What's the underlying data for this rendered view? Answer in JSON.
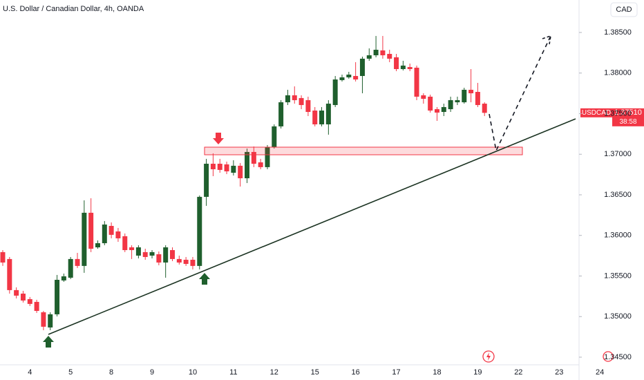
{
  "chart_data": {
    "type": "candlestick",
    "title": "U.S. Dollar / Canadian Dollar, 4h, OANDA",
    "currency_button": "CAD",
    "symbol_tag": "USDCAD",
    "last_price": {
      "value": 1.3751,
      "label": "1.37510"
    },
    "countdown": "38:58",
    "up_color": "#1f5f2d",
    "down_color": "#f23645",
    "grid": false,
    "categories": [
      null,
      null,
      null,
      null,
      "4",
      null,
      null,
      null,
      null,
      null,
      "5",
      null,
      null,
      null,
      null,
      null,
      "8",
      null,
      null,
      null,
      null,
      null,
      "9",
      null,
      null,
      null,
      null,
      null,
      "10",
      null,
      null,
      null,
      null,
      null,
      "11",
      null,
      null,
      null,
      null,
      null,
      "12",
      null,
      null,
      null,
      null,
      null,
      "15",
      null,
      null,
      null,
      null,
      null,
      "16",
      null,
      null,
      null,
      null,
      null,
      "17",
      null,
      null,
      null,
      null,
      null,
      "18",
      null,
      null,
      null,
      null,
      null,
      "19",
      null,
      null,
      null,
      null,
      null,
      "22",
      null,
      null,
      null,
      null,
      null,
      "23",
      null,
      null,
      null,
      null,
      null,
      "24"
    ],
    "open": [
      1.35794,
      1.35709,
      1.35326,
      1.35283,
      1.35215,
      1.35181,
      1.35053,
      1.34866,
      1.35028,
      1.35445,
      1.35479,
      1.35709,
      1.35624,
      1.36279,
      1.35853,
      1.35904,
      1.36117,
      1.36049,
      1.3599,
      1.35853,
      1.35751,
      1.35794,
      1.35751,
      1.35768,
      1.35666,
      1.35819,
      1.35709,
      1.357,
      1.357,
      1.35624,
      1.36475,
      1.36883,
      1.36883,
      1.36875,
      1.36772,
      1.36858,
      1.36704,
      1.37028,
      1.369,
      1.36841,
      1.37087,
      1.37343,
      1.3764,
      1.37726,
      1.37692,
      1.37666,
      1.37538,
      1.37368,
      1.37368,
      1.37606,
      1.37913,
      1.37947,
      1.37964,
      1.37964,
      1.38177,
      1.38219,
      1.38279,
      1.38236,
      1.38194,
      1.38049,
      1.38074,
      1.38066,
      1.37726,
      1.37709,
      1.37555,
      1.37521,
      1.37555,
      1.3764,
      1.3764,
      1.37794,
      1.37768,
      1.37623,
      null,
      null,
      null,
      null,
      null,
      null,
      null,
      null,
      null,
      null,
      null,
      null,
      null,
      null,
      null,
      null,
      null
    ],
    "high": [
      1.35819,
      1.35734,
      1.3536,
      1.35317,
      1.35241,
      1.35207,
      1.3507,
      1.35053,
      1.35513,
      1.3553,
      1.35734,
      1.35785,
      1.36432,
      1.36458,
      1.35938,
      1.36177,
      1.3616,
      1.36092,
      1.36024,
      1.35879,
      1.35879,
      1.35836,
      1.35819,
      1.35802,
      1.35879,
      1.35853,
      1.35751,
      1.35734,
      1.35734,
      1.36492,
      1.36943,
      1.37011,
      1.36943,
      1.36909,
      1.36926,
      1.36892,
      1.3707,
      1.37096,
      1.36943,
      1.37113,
      1.37368,
      1.37666,
      1.37794,
      1.37836,
      1.37726,
      1.37709,
      1.37581,
      1.37581,
      1.37666,
      1.37964,
      1.37981,
      1.38015,
      1.38134,
      1.38202,
      1.38304,
      1.38457,
      1.38457,
      1.38287,
      1.38236,
      1.38151,
      1.38117,
      1.38092,
      1.37751,
      1.37734,
      1.37581,
      1.37623,
      1.37709,
      1.37709,
      1.37819,
      1.38049,
      1.37879,
      1.3764,
      null,
      null,
      null,
      null,
      null,
      null,
      null,
      null,
      null,
      null,
      null,
      null,
      null,
      null,
      null,
      null,
      null
    ],
    "low": [
      1.35624,
      1.35283,
      1.35224,
      1.35173,
      1.3513,
      1.35045,
      1.34832,
      1.34832,
      1.35002,
      1.35428,
      1.35462,
      1.35598,
      1.35539,
      1.35794,
      1.35836,
      1.35879,
      1.35964,
      1.35921,
      1.35794,
      1.35709,
      1.35717,
      1.357,
      1.35717,
      1.35632,
      1.35479,
      1.35683,
      1.35641,
      1.35624,
      1.35581,
      1.35581,
      1.36364,
      1.3673,
      1.36772,
      1.36755,
      1.36738,
      1.36602,
      1.36645,
      1.36841,
      1.36815,
      1.36815,
      1.3707,
      1.37317,
      1.37606,
      1.37623,
      1.37555,
      1.3747,
      1.37343,
      1.37343,
      1.37241,
      1.37581,
      1.37896,
      1.3793,
      1.37896,
      1.37751,
      1.38151,
      1.38194,
      1.38177,
      1.38134,
      1.38023,
      1.38032,
      1.38023,
      1.37666,
      1.37623,
      1.37513,
      1.37411,
      1.3747,
      1.37521,
      1.37606,
      1.37623,
      1.3764,
      1.37581,
      1.3747,
      null,
      null,
      null,
      null,
      null,
      null,
      null,
      null,
      null,
      null,
      null,
      null,
      null,
      null,
      null,
      null,
      null
    ],
    "close": [
      1.35666,
      1.35326,
      1.35258,
      1.35198,
      1.35156,
      1.3507,
      1.34875,
      1.35028,
      1.35453,
      1.35496,
      1.35709,
      1.35624,
      1.36279,
      1.35836,
      1.35904,
      1.36134,
      1.36007,
      1.35964,
      1.35819,
      1.35819,
      1.35853,
      1.35734,
      1.35794,
      1.35666,
      1.35853,
      1.35709,
      1.35666,
      1.35649,
      1.35624,
      1.36475,
      1.36883,
      1.36815,
      1.36807,
      1.36789,
      1.36858,
      1.36704,
      1.37028,
      1.36883,
      1.36841,
      1.37087,
      1.37343,
      1.3764,
      1.37726,
      1.37666,
      1.37606,
      1.37521,
      1.37368,
      1.37538,
      1.37623,
      1.37921,
      1.37947,
      1.37981,
      1.37921,
      1.38177,
      1.38219,
      1.38287,
      1.38219,
      1.38177,
      1.38049,
      1.38092,
      1.38049,
      1.37709,
      1.37683,
      1.37538,
      1.37513,
      1.37581,
      1.37666,
      1.37666,
      1.37794,
      1.37751,
      1.37606,
      1.3751,
      null,
      null,
      null,
      null,
      null,
      null,
      null,
      null,
      null,
      null,
      null,
      null,
      null,
      null,
      null,
      null,
      null
    ],
    "ylim": [
      1.34406,
      1.389
    ],
    "yticks": [
      {
        "value": 1.345,
        "label": "1.34500"
      },
      {
        "value": 1.35,
        "label": "1.35000"
      },
      {
        "value": 1.355,
        "label": "1.35500"
      },
      {
        "value": 1.36,
        "label": "1.36000"
      },
      {
        "value": 1.365,
        "label": "1.36500"
      },
      {
        "value": 1.37,
        "label": "1.37000"
      },
      {
        "value": 1.375,
        "label": "1.37500"
      },
      {
        "value": 1.38,
        "label": "1.38000"
      },
      {
        "value": 1.385,
        "label": "1.38500"
      }
    ]
  }
}
